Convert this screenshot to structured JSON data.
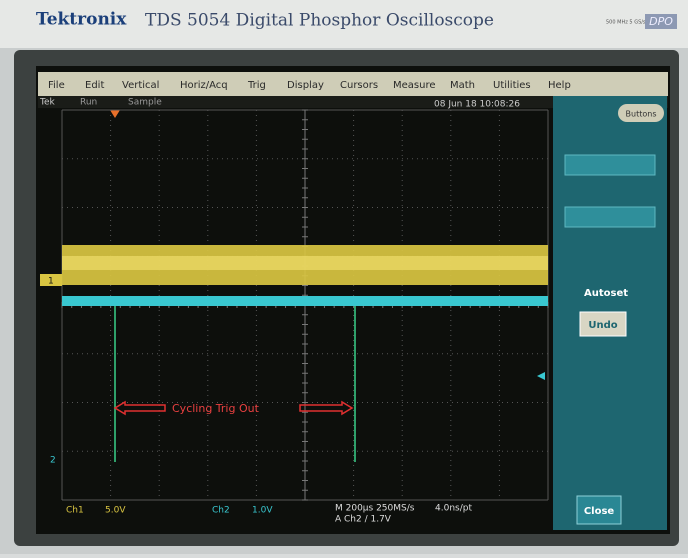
{
  "header": {
    "brand": "Tektronix",
    "model": "TDS 5054 Digital Phosphor Oscilloscope",
    "spec": "500 MHz 5 GS/s",
    "badge": "DPO"
  },
  "menu": [
    "File",
    "Edit",
    "Vertical",
    "Horiz/Acq",
    "Trig",
    "Display",
    "Cursors",
    "Measure",
    "Math",
    "Utilities",
    "Help"
  ],
  "status": {
    "mode": "Tek",
    "state": "Run",
    "acquisition": "Sample",
    "datetime": "08 Jun 18 10:08:26"
  },
  "buttons": {
    "top": "Buttons",
    "autoset": "Autoset",
    "undo": "Undo",
    "close": "Close"
  },
  "channels": {
    "ch1_marker": "1",
    "ch2_marker": "2"
  },
  "readout": {
    "ch1": "Ch1",
    "ch1_scale": "5.0V",
    "ch2": "Ch2",
    "ch2_scale": "1.0V",
    "timebase": "M 200µs 250MS/s",
    "resolution": "4.0ns/pt",
    "trigger": "A Ch2 / 1.7V"
  },
  "annotation": "Cycling Trig Out"
}
